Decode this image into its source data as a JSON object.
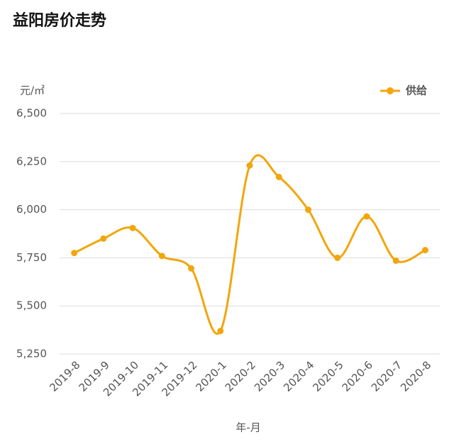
{
  "chart_data": {
    "type": "line",
    "title": "益阳房价走势",
    "y_label": "元/㎡",
    "x_label": "年-月",
    "categories": [
      "2019-8",
      "2019-9",
      "2019-10",
      "2019-11",
      "2019-12",
      "2020-1",
      "2020-2",
      "2020-3",
      "2020-4",
      "2020-5",
      "2020-6",
      "2020-7",
      "2020-8"
    ],
    "series": [
      {
        "name": "供给",
        "color": "#f2a60c",
        "values": [
          5775,
          5850,
          5905,
          5760,
          5695,
          5370,
          6230,
          6170,
          6000,
          5750,
          5965,
          5735,
          5790
        ]
      }
    ],
    "ylim": [
      5250,
      6500
    ],
    "yticks": [
      {
        "value": 5250,
        "label": "5,250"
      },
      {
        "value": 5500,
        "label": "5,500"
      },
      {
        "value": 5750,
        "label": "5,750"
      },
      {
        "value": 6000,
        "label": "6,000"
      },
      {
        "value": 6250,
        "label": "6,250"
      },
      {
        "value": 6500,
        "label": "6,500"
      }
    ],
    "grid": true,
    "legend": "top-right",
    "smooth": true
  }
}
